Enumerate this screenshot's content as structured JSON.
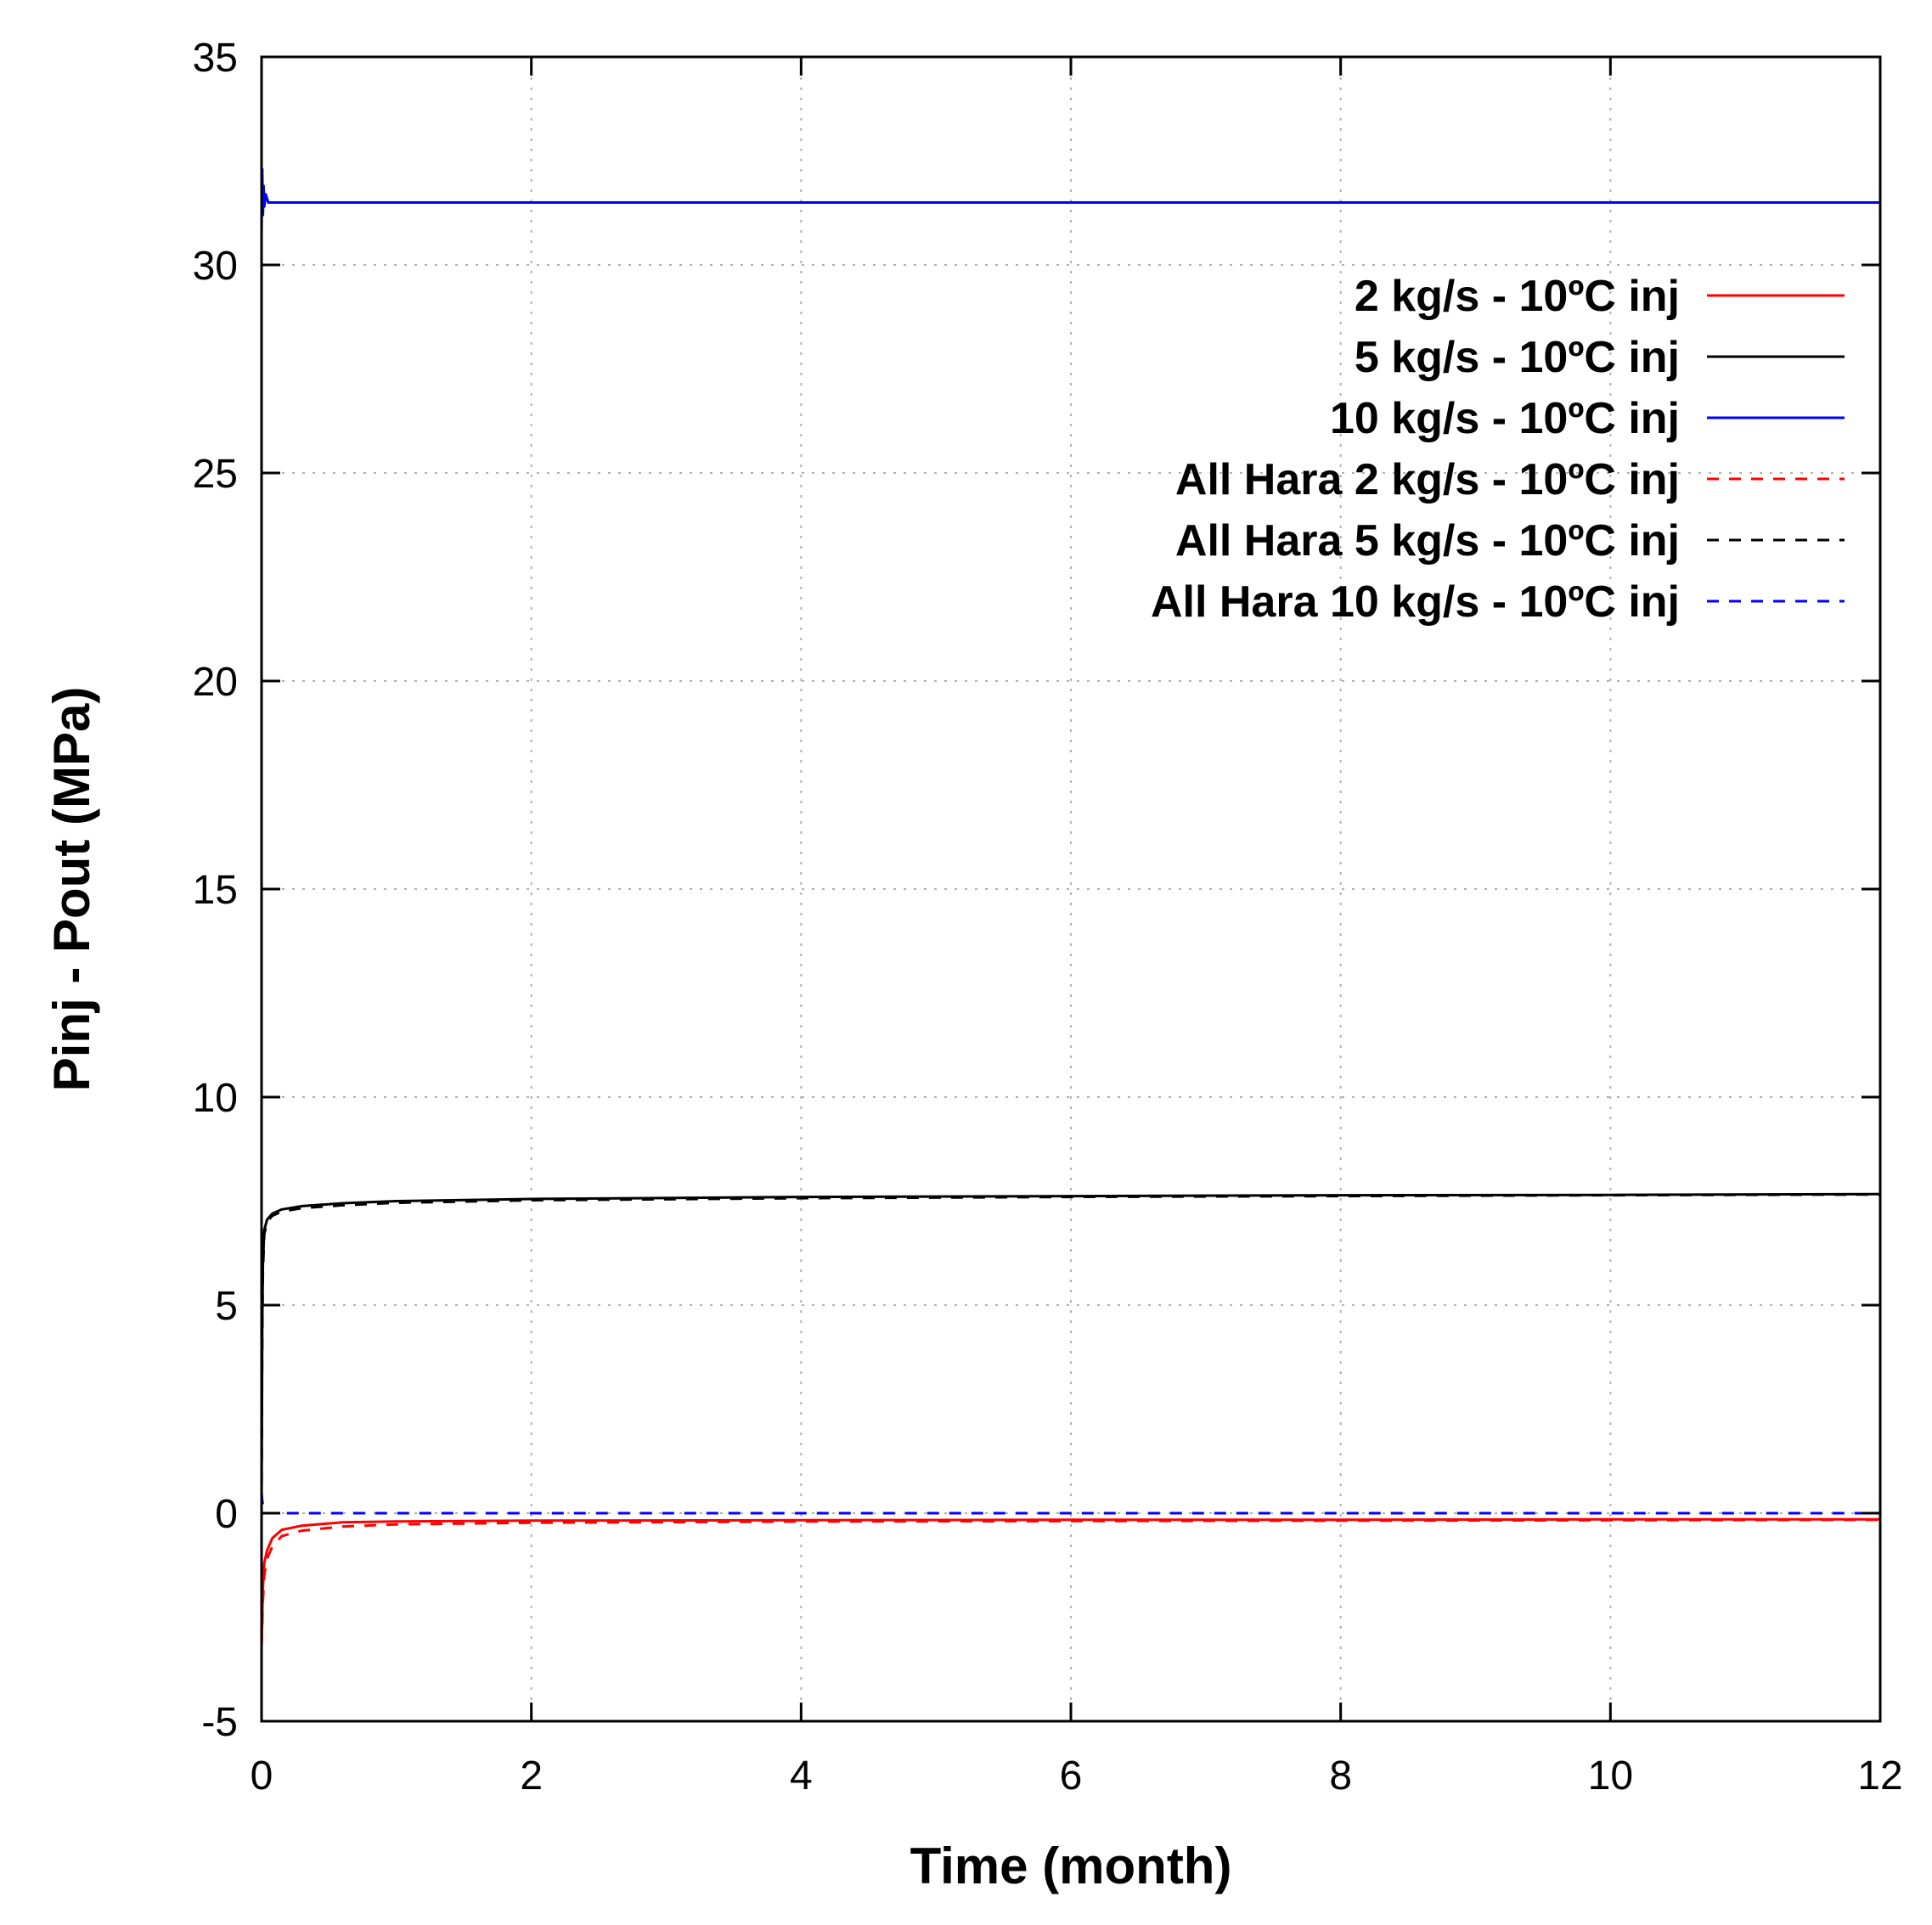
{
  "chart_data": {
    "type": "line",
    "title": "",
    "xlabel": "Time (month)",
    "ylabel": "Pinj - Pout (MPa)",
    "xlim": [
      0,
      12
    ],
    "ylim": [
      -5,
      35
    ],
    "xticks": [
      0,
      2,
      4,
      6,
      8,
      10,
      12
    ],
    "yticks": [
      -5,
      0,
      5,
      10,
      15,
      20,
      25,
      30,
      35
    ],
    "grid": true,
    "legend_position": "top-right",
    "series": [
      {
        "name": "2 kg/s - 10ºC inj",
        "color": "#ff0000",
        "dash": "solid",
        "x": [
          0,
          0.005,
          0.01,
          0.02,
          0.04,
          0.08,
          0.15,
          0.3,
          0.6,
          1,
          2,
          4,
          6,
          8,
          10,
          12
        ],
        "y": [
          -3.2,
          -2.5,
          -1.8,
          -1.2,
          -0.9,
          -0.6,
          -0.4,
          -0.3,
          -0.22,
          -0.2,
          -0.18,
          -0.17,
          -0.16,
          -0.16,
          -0.15,
          -0.15
        ]
      },
      {
        "name": "5 kg/s - 10ºC inj",
        "color": "#000000",
        "dash": "solid",
        "x": [
          0,
          0.005,
          0.01,
          0.02,
          0.04,
          0.08,
          0.15,
          0.3,
          0.6,
          1,
          2,
          4,
          6,
          8,
          10,
          12
        ],
        "y": [
          0.2,
          4.5,
          6.0,
          6.8,
          7.05,
          7.2,
          7.3,
          7.38,
          7.45,
          7.5,
          7.55,
          7.6,
          7.62,
          7.64,
          7.65,
          7.67
        ]
      },
      {
        "name": "10 kg/s - 10ºC inj",
        "color": "#0000ff",
        "dash": "solid",
        "x": [
          0,
          0.005,
          0.01,
          0.015,
          0.02,
          0.03,
          0.05,
          0.1,
          0.5,
          2,
          4,
          6,
          8,
          10,
          12
        ],
        "y": [
          30.8,
          32.3,
          31.2,
          31.9,
          31.4,
          31.7,
          31.5,
          31.5,
          31.5,
          31.5,
          31.5,
          31.5,
          31.5,
          31.5,
          31.5
        ]
      },
      {
        "name": "All Hara 2 kg/s - 10ºC inj",
        "color": "#ff0000",
        "dash": "dashed",
        "x": [
          0,
          0.005,
          0.01,
          0.02,
          0.04,
          0.08,
          0.15,
          0.3,
          0.6,
          1,
          2,
          4,
          6,
          8,
          10,
          12
        ],
        "y": [
          -3.2,
          -2.7,
          -2.1,
          -1.5,
          -1.1,
          -0.8,
          -0.55,
          -0.42,
          -0.32,
          -0.27,
          -0.23,
          -0.2,
          -0.19,
          -0.18,
          -0.17,
          -0.16
        ]
      },
      {
        "name": "All Hara 5 kg/s - 10ºC inj",
        "color": "#000000",
        "dash": "dashed",
        "x": [
          0,
          0.005,
          0.01,
          0.02,
          0.04,
          0.08,
          0.15,
          0.3,
          0.6,
          1,
          2,
          4,
          6,
          8,
          10,
          12
        ],
        "y": [
          0.2,
          4.2,
          5.8,
          6.7,
          7.0,
          7.15,
          7.25,
          7.33,
          7.4,
          7.46,
          7.52,
          7.57,
          7.6,
          7.62,
          7.64,
          7.66
        ]
      },
      {
        "name": "All Hara 10 kg/s - 10ºC inj",
        "color": "#0000ff",
        "dash": "dashed",
        "x": [
          0,
          0.005,
          0.01,
          0.015,
          0.02,
          0.03,
          0.05,
          0.1,
          0.5,
          2,
          4,
          6,
          8,
          10,
          12
        ],
        "y": [
          0.5,
          0.3,
          0.2,
          0.0,
          0.0,
          0.0,
          0.0,
          0.0,
          0.0,
          0.0,
          0.0,
          0.0,
          0.0,
          0.0,
          0.0
        ]
      }
    ]
  }
}
